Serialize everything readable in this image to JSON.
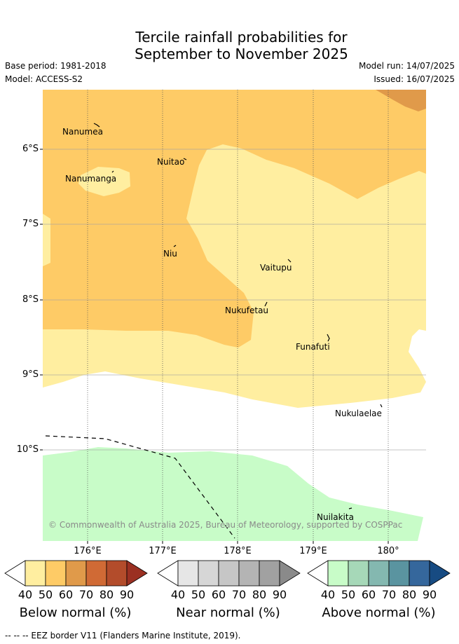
{
  "title_line1": "Tercile rainfall probabilities for",
  "title_line2": "September to November 2025",
  "base_period": "Base period: 1981-2018",
  "model": "Model: ACCESS-S2",
  "model_run": "Model run: 14/07/2025",
  "issued": "Issued: 16/07/2025",
  "lat_ticks": [
    "6°S",
    "7°S",
    "8°S",
    "9°S",
    "10°S"
  ],
  "lon_ticks": [
    "176°E",
    "177°E",
    "178°E",
    "179°E",
    "180°"
  ],
  "places": {
    "nanumea": "Nanumea",
    "nanumanga": "Nanumanga",
    "nuitao": "Nuitao",
    "niu": "Niu",
    "vaitupu": "Vaitupu",
    "nukufetau": "Nukufetau",
    "funafuti": "Funafuti",
    "nukulaelae": "Nukulaelae",
    "nuilakita": "Nuilakita"
  },
  "credit": "© Commonwealth of Australia 2025, Bureau of Meteorology, supported by COSPPac",
  "legend": {
    "below": {
      "title": "Below normal (%)",
      "ticks": [
        "40",
        "50",
        "60",
        "70",
        "80",
        "90"
      ],
      "colors": [
        "#ffeea0",
        "#fecb66",
        "#e09a4a",
        "#d06a35",
        "#b34c2b",
        "#9b3022"
      ]
    },
    "near": {
      "title": "Near normal (%)",
      "ticks": [
        "40",
        "50",
        "60",
        "70",
        "80",
        "90"
      ],
      "colors": [
        "#e6e6e6",
        "#d6d6d6",
        "#c6c6c6",
        "#b4b4b4",
        "#a1a1a1",
        "#8a8a8a"
      ]
    },
    "above": {
      "title": "Above normal (%)",
      "ticks": [
        "40",
        "50",
        "60",
        "70",
        "80",
        "90"
      ],
      "colors": [
        "#c8fcc8",
        "#a6d8b8",
        "#84b8b0",
        "#5a94a0",
        "#35679c",
        "#174b82"
      ]
    }
  },
  "footnote": "-- -- -- EEZ border V11 (Flanders Marine Institute, 2019)."
}
